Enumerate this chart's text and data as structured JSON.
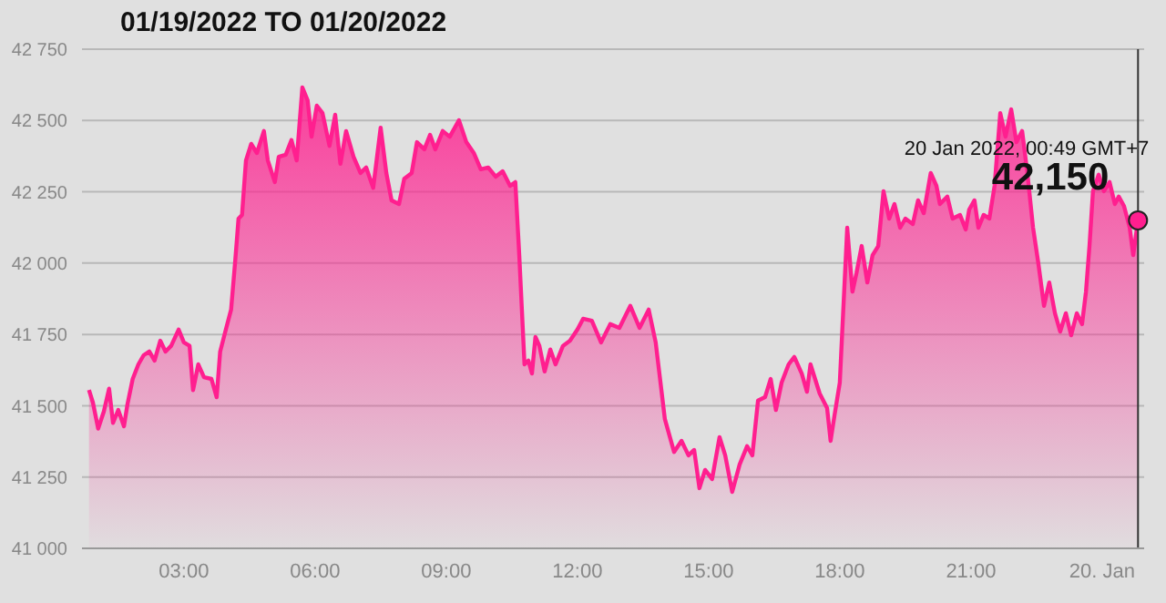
{
  "chart_data": {
    "type": "area",
    "title": "01/19/2022 TO 01/20/2022",
    "x": [
      0.83,
      0.92,
      1.04,
      1.17,
      1.29,
      1.38,
      1.5,
      1.63,
      1.71,
      1.83,
      1.96,
      2.08,
      2.21,
      2.33,
      2.46,
      2.58,
      2.71,
      2.88,
      3.0,
      3.13,
      3.21,
      3.33,
      3.46,
      3.63,
      3.75,
      3.83,
      3.96,
      4.08,
      4.17,
      4.25,
      4.33,
      4.42,
      4.54,
      4.67,
      4.83,
      4.92,
      5.08,
      5.17,
      5.33,
      5.46,
      5.58,
      5.71,
      5.83,
      5.92,
      6.04,
      6.17,
      6.33,
      6.46,
      6.58,
      6.71,
      6.88,
      7.04,
      7.17,
      7.33,
      7.5,
      7.63,
      7.75,
      7.92,
      8.04,
      8.21,
      8.33,
      8.5,
      8.63,
      8.75,
      8.92,
      9.08,
      9.29,
      9.46,
      9.63,
      9.79,
      9.96,
      10.13,
      10.29,
      10.46,
      10.58,
      10.67,
      10.79,
      10.88,
      10.96,
      11.04,
      11.13,
      11.25,
      11.38,
      11.5,
      11.67,
      11.83,
      12.0,
      12.13,
      12.33,
      12.54,
      12.75,
      12.96,
      13.21,
      13.42,
      13.63,
      13.79,
      14.0,
      14.21,
      14.38,
      14.54,
      14.67,
      14.79,
      14.92,
      15.08,
      15.25,
      15.38,
      15.54,
      15.71,
      15.88,
      16.0,
      16.13,
      16.29,
      16.42,
      16.54,
      16.67,
      16.83,
      16.96,
      17.13,
      17.25,
      17.33,
      17.54,
      17.71,
      17.79,
      17.88,
      18.0,
      18.08,
      18.17,
      18.29,
      18.38,
      18.5,
      18.63,
      18.75,
      18.88,
      19.0,
      19.13,
      19.25,
      19.38,
      19.5,
      19.67,
      19.79,
      19.92,
      20.08,
      20.21,
      20.29,
      20.46,
      20.58,
      20.75,
      20.88,
      20.96,
      21.08,
      21.17,
      21.29,
      21.42,
      21.54,
      21.67,
      21.79,
      21.92,
      22.04,
      22.17,
      22.29,
      22.42,
      22.54,
      22.67,
      22.79,
      22.92,
      23.04,
      23.17,
      23.29,
      23.42,
      23.54,
      23.63,
      23.71,
      23.79,
      23.92,
      24.04,
      24.17,
      24.29,
      24.38,
      24.5,
      24.63,
      24.71,
      24.82
    ],
    "series": [
      {
        "color": "#ff1f8f",
        "values": [
          41555,
          41511,
          41420,
          41480,
          41560,
          41440,
          41485,
          41428,
          41505,
          41594,
          41645,
          41677,
          41690,
          41658,
          41728,
          41690,
          41710,
          41767,
          41722,
          41710,
          41555,
          41645,
          41600,
          41594,
          41530,
          41690,
          41767,
          41837,
          42000,
          42156,
          42169,
          42360,
          42418,
          42386,
          42463,
          42360,
          42284,
          42373,
          42380,
          42431,
          42360,
          42616,
          42571,
          42443,
          42552,
          42526,
          42411,
          42520,
          42348,
          42463,
          42373,
          42316,
          42335,
          42264,
          42475,
          42316,
          42220,
          42207,
          42296,
          42316,
          42424,
          42399,
          42450,
          42399,
          42463,
          42443,
          42501,
          42424,
          42386,
          42329,
          42335,
          42303,
          42322,
          42271,
          42284,
          42028,
          41645,
          41658,
          41613,
          41741,
          41710,
          41620,
          41697,
          41645,
          41710,
          41728,
          41767,
          41805,
          41798,
          41722,
          41786,
          41773,
          41850,
          41773,
          41837,
          41722,
          41453,
          41338,
          41377,
          41326,
          41345,
          41211,
          41275,
          41243,
          41390,
          41326,
          41198,
          41294,
          41358,
          41326,
          41518,
          41530,
          41594,
          41485,
          41581,
          41645,
          41671,
          41613,
          41549,
          41645,
          41543,
          41492,
          41377,
          41467,
          41581,
          41837,
          42124,
          41900,
          41964,
          42060,
          41932,
          42028,
          42060,
          42252,
          42156,
          42207,
          42124,
          42156,
          42137,
          42220,
          42175,
          42316,
          42271,
          42207,
          42233,
          42156,
          42169,
          42118,
          42188,
          42220,
          42124,
          42169,
          42156,
          42271,
          42526,
          42443,
          42539,
          42424,
          42463,
          42316,
          42124,
          42000,
          41850,
          41932,
          41824,
          41760,
          41824,
          41747,
          41824,
          41786,
          41900,
          42060,
          42252,
          42310,
          42252,
          42284,
          42207,
          42233,
          42200,
          42124,
          42028,
          42150
        ]
      }
    ],
    "xlim": [
      0.67,
      24.96
    ],
    "xticks": [
      {
        "value": 3,
        "label": "03:00"
      },
      {
        "value": 6,
        "label": "06:00"
      },
      {
        "value": 9,
        "label": "09:00"
      },
      {
        "value": 12,
        "label": "12:00"
      },
      {
        "value": 15,
        "label": "15:00"
      },
      {
        "value": 18,
        "label": "18:00"
      },
      {
        "value": 21,
        "label": "21:00"
      },
      {
        "value": 24,
        "label": "20. Jan"
      }
    ],
    "ylim": [
      41000,
      42750
    ],
    "yticks": [
      {
        "value": 41000,
        "label": "41 000"
      },
      {
        "value": 41250,
        "label": "41 250"
      },
      {
        "value": 41500,
        "label": "41 500"
      },
      {
        "value": 41750,
        "label": "41 750"
      },
      {
        "value": 42000,
        "label": "42 000"
      },
      {
        "value": 42250,
        "label": "42 250"
      },
      {
        "value": 42500,
        "label": "42 500"
      },
      {
        "value": 42750,
        "label": "42 750"
      }
    ],
    "grid": "y",
    "ref_lines": [
      {
        "axis": "x",
        "value": 24.82,
        "color": "#333333"
      }
    ],
    "annotations": [
      {
        "text": "20 Jan 2022, 00:49 GMT+7",
        "x": 24.82,
        "y": 42150
      },
      {
        "text": "42,150",
        "x": 24.82,
        "y": 42150
      }
    ]
  }
}
